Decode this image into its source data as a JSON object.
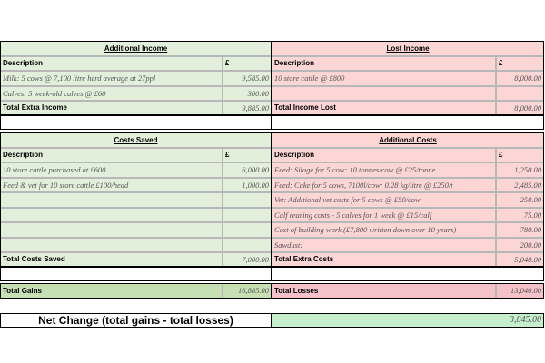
{
  "blocks": [
    {
      "left": {
        "title": "Additional Income",
        "header": [
          "Description",
          "£"
        ],
        "rows": [
          [
            "Milk:  5 cows @ 7,100 litre herd average at 27ppl",
            "9,585.00"
          ],
          [
            "Calves:  5 week-old calves @ £60",
            "300.00"
          ]
        ],
        "total": [
          "Total Extra Income",
          "9,885.00"
        ]
      },
      "right": {
        "title": "Lost Income",
        "header": [
          "Description",
          "£"
        ],
        "rows": [
          [
            "10 store cattle @ £800",
            "8,000.00"
          ]
        ],
        "total": [
          "Total Income Lost",
          "8,000.00"
        ]
      }
    },
    {
      "left": {
        "title": "Costs Saved",
        "header": [
          "Description",
          "£"
        ],
        "rows": [
          [
            "10 store cattle purchased at £600",
            "6,000.00"
          ],
          [
            "Feed & vet for 10 store cattle £100/head",
            "1,000.00"
          ]
        ],
        "total": [
          "Total Costs Saved",
          "7,000.00"
        ]
      },
      "right": {
        "title": "Additional Costs",
        "header": [
          "Description",
          "£"
        ],
        "rows": [
          [
            "Feed:  Silage for 5 cow: 10 tonnes/cow @ £25/tonne",
            "1,250.00"
          ],
          [
            "Feed:  Cake for 5 cows, 7100l/cow: 0.28 kg/litre @ £250/t",
            "2,485.00"
          ],
          [
            "Vet:  Additional vet costs for 5 cows @ £50/cow",
            "250.00"
          ],
          [
            "Calf rearing costs - 5 calves for 1 week @ £15/calf",
            "75.00"
          ],
          [
            "Cost of building work (£7,800 written down over 10 years)",
            "780.00"
          ],
          [
            "Sawdust:",
            "200.00"
          ]
        ],
        "total": [
          "Total Extra Costs",
          "5,040.00"
        ]
      }
    }
  ],
  "totals": {
    "gains": [
      "Total Gains",
      "16,885.00"
    ],
    "losses": [
      "Total Losses",
      "13,040.00"
    ]
  },
  "net": {
    "label": "Net Change (total gains - total losses)",
    "value": "3,845.00"
  }
}
